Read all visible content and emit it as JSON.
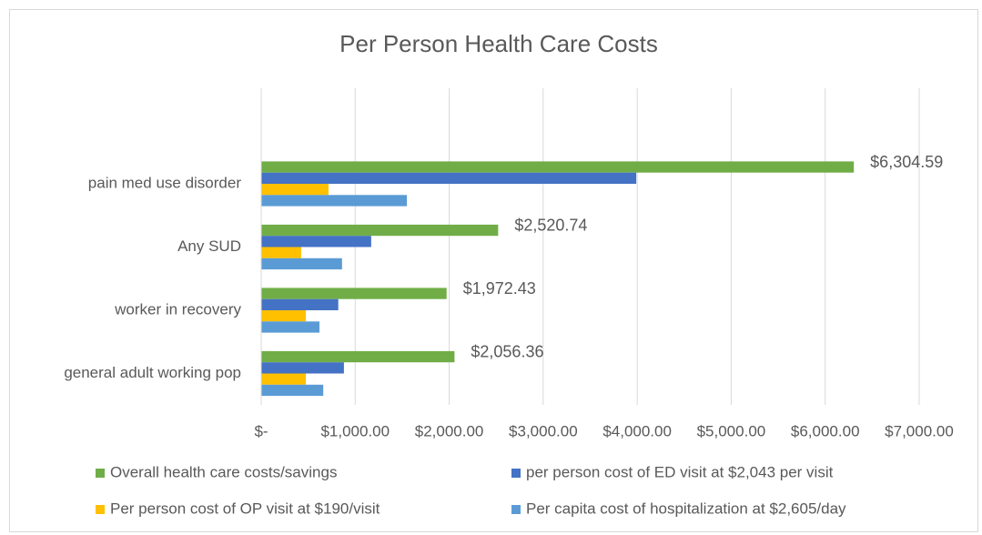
{
  "chart_data": {
    "type": "bar",
    "orientation": "horizontal",
    "title": "Per Person Health Care Costs",
    "categories": [
      "pain med use disorder",
      "Any SUD",
      "worker in recovery",
      "general adult working pop"
    ],
    "series": [
      {
        "name": "Overall health care costs/savings",
        "color": "#70ad47",
        "values": [
          6304.59,
          2520.74,
          1972.43,
          2056.36
        ],
        "value_labels": [
          "$6,304.59",
          "$2,520.74",
          "$1,972.43",
          "$2,056.36"
        ]
      },
      {
        "name": "per person cost of ED visit at $2,043 per visit",
        "color": "#4472c4",
        "values": [
          3990,
          1170,
          820,
          880
        ]
      },
      {
        "name": "Per person cost of OP visit at $190/visit",
        "color": "#ffc000",
        "values": [
          716,
          425,
          475,
          475
        ]
      },
      {
        "name": "Per capita cost of hospitalization at $2,605/day",
        "color": "#5b9bd5",
        "values": [
          1550,
          860,
          620,
          660
        ]
      }
    ],
    "xlim": [
      0,
      7000
    ],
    "xticks": [
      {
        "value": 0,
        "label": "$-"
      },
      {
        "value": 1000,
        "label": "$1,000.00"
      },
      {
        "value": 2000,
        "label": "$2,000.00"
      },
      {
        "value": 3000,
        "label": "$3,000.00"
      },
      {
        "value": 4000,
        "label": "$4,000.00"
      },
      {
        "value": 5000,
        "label": "$5,000.00"
      },
      {
        "value": 6000,
        "label": "$6,000.00"
      },
      {
        "value": 7000,
        "label": "$7,000.00"
      }
    ],
    "grid": true,
    "legend": "bottom"
  }
}
